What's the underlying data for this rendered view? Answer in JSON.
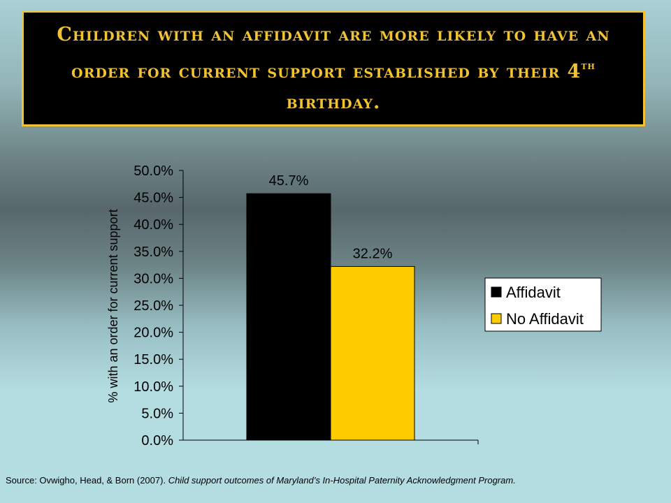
{
  "slide": {
    "title_part1": "Children with an affidavit are more likely to have an order for current support established by their 4",
    "title_sup": "th",
    "title_part2": " birthday.",
    "source_prefix": "Source: Ovwigho, Head, & Born (2007). ",
    "source_title": "Child support outcomes of Maryland’s In-Hospital Paternity Acknowledgment Program."
  },
  "chart_data": {
    "type": "bar",
    "title": "",
    "xlabel": "",
    "ylabel": "% with an order for current support",
    "ylim": [
      0,
      50
    ],
    "yticks": [
      "0.0%",
      "5.0%",
      "10.0%",
      "15.0%",
      "20.0%",
      "25.0%",
      "30.0%",
      "35.0%",
      "40.0%",
      "45.0%",
      "50.0%"
    ],
    "categories": [
      ""
    ],
    "series": [
      {
        "name": "Affidavit",
        "values": [
          45.7
        ],
        "label": "45.7%",
        "color": "#000000"
      },
      {
        "name": "No Affidavit",
        "values": [
          32.2
        ],
        "label": "32.2%",
        "color": "#ffcc00"
      }
    ],
    "grid": false,
    "legend": "right"
  }
}
